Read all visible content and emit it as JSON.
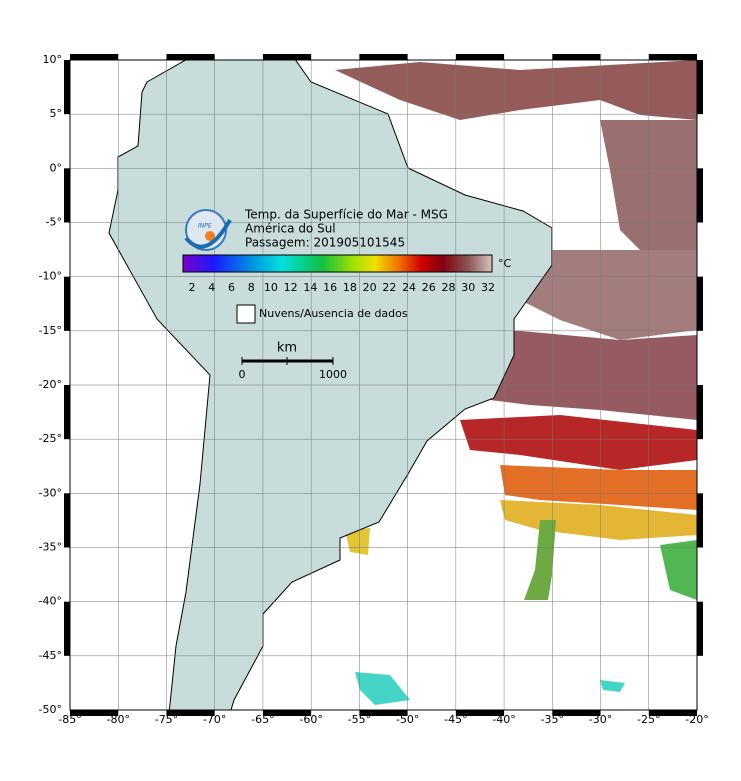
{
  "map": {
    "lonlim": [
      -85,
      -20
    ],
    "latlim": [
      -50,
      10
    ],
    "lon_ticks": [
      {
        "value": -85,
        "label": "-85°"
      },
      {
        "value": -80,
        "label": "-80°"
      },
      {
        "value": -75,
        "label": "-75°"
      },
      {
        "value": -70,
        "label": "-70°"
      },
      {
        "value": -65,
        "label": "-65°"
      },
      {
        "value": -60,
        "label": "-60°"
      },
      {
        "value": -55,
        "label": "-55°"
      },
      {
        "value": -50,
        "label": "-50°"
      },
      {
        "value": -45,
        "label": "-45°"
      },
      {
        "value": -40,
        "label": "-40°"
      },
      {
        "value": -35,
        "label": "-35°"
      },
      {
        "value": -30,
        "label": "-30°"
      },
      {
        "value": -25,
        "label": "-25°"
      },
      {
        "value": -20,
        "label": "-20°"
      }
    ],
    "lat_ticks": [
      {
        "value": 10,
        "label": "10°"
      },
      {
        "value": 5,
        "label": "5°"
      },
      {
        "value": 0,
        "label": "0°"
      },
      {
        "value": -5,
        "label": "-5°"
      },
      {
        "value": -10,
        "label": "-10°"
      },
      {
        "value": -15,
        "label": "-15°"
      },
      {
        "value": -20,
        "label": "-20°"
      },
      {
        "value": -25,
        "label": "-25°"
      },
      {
        "value": -30,
        "label": "-30°"
      },
      {
        "value": -35,
        "label": "-35°"
      },
      {
        "value": -40,
        "label": "-40°"
      },
      {
        "value": -45,
        "label": "-45°"
      },
      {
        "value": -50,
        "label": "-50°"
      }
    ]
  },
  "legend": {
    "title_lines": [
      "Temp. da Superfície do Mar - MSG",
      "América do Sul",
      "Passagem: 201905101545"
    ],
    "logo": "INPE",
    "colorbar": {
      "unit": "°C",
      "ticks": [
        2,
        4,
        6,
        8,
        10,
        12,
        14,
        16,
        18,
        20,
        22,
        24,
        26,
        28,
        30,
        32
      ]
    },
    "missing": "Nuvens/Ausencia de dados",
    "scale": {
      "unit": "km",
      "ticks": [
        0,
        1000
      ]
    }
  }
}
